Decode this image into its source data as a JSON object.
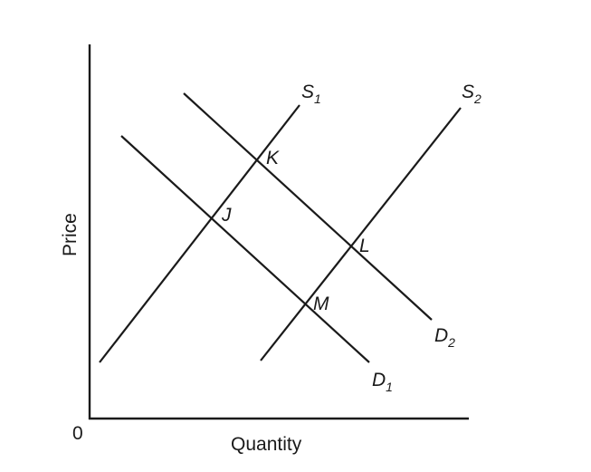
{
  "axes": {
    "origin_label": "0",
    "x_title": "Quantity",
    "y_title": "Price"
  },
  "curves": {
    "s1": {
      "main": "S",
      "sub": "1"
    },
    "s2": {
      "main": "S",
      "sub": "2"
    },
    "d1": {
      "main": "D",
      "sub": "1"
    },
    "d2": {
      "main": "D",
      "sub": "2"
    }
  },
  "points": {
    "j": "J",
    "k": "K",
    "l": "L",
    "m": "M"
  }
}
